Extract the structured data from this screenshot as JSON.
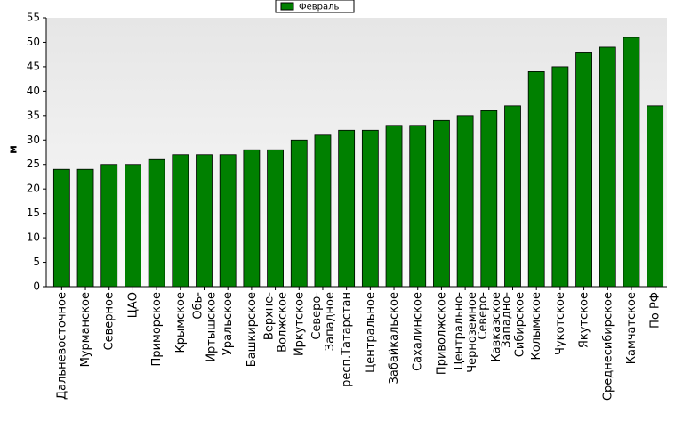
{
  "chart_data": {
    "type": "bar",
    "y_label": "м",
    "categories": [
      "Дальневосточное",
      "Мурманское",
      "Северное",
      "ЦАО",
      "Приморское",
      "Крымское",
      "Обь-Иртышское",
      "Уральское",
      "Башкирское",
      "Верхне-Волжское",
      "Иркутское",
      "Северо-Западное",
      "респ.Татарстан",
      "Центральное",
      "Забайкальское",
      "Сахалинское",
      "Приволжское",
      "Центрально-Черноземное",
      "Северо-Кавказское",
      "Западно-Сибирское",
      "Колымское",
      "Чукотское",
      "Якутское",
      "Среднесибирское",
      "Камчатское",
      "По РФ"
    ],
    "series": [
      {
        "name": "Февраль",
        "color": "#008000",
        "values": [
          24,
          24,
          25,
          25,
          26,
          27,
          27,
          27,
          28,
          28,
          30,
          31,
          32,
          32,
          33,
          33,
          34,
          35,
          36,
          37,
          44,
          45,
          48,
          49,
          51,
          37
        ]
      }
    ],
    "ylim": [
      0,
      55
    ],
    "yticks": [
      0,
      5,
      10,
      15,
      20,
      25,
      30,
      35,
      40,
      45,
      50,
      55
    ],
    "grid": false
  }
}
